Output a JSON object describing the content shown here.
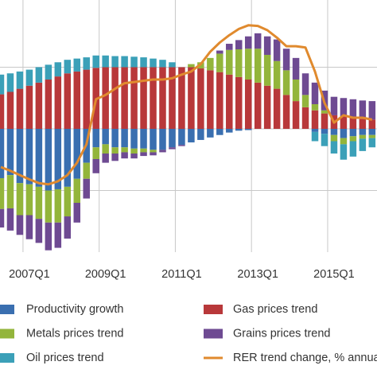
{
  "chart_data": {
    "type": "bar",
    "categories": [
      null,
      null,
      null,
      "2007Q1",
      null,
      null,
      null,
      null,
      null,
      null,
      null,
      "2009Q1",
      null,
      null,
      null,
      null,
      null,
      null,
      null,
      "2011Q1",
      null,
      null,
      null,
      null,
      null,
      null,
      null,
      "2013Q1",
      null,
      null,
      null,
      null,
      null,
      null,
      null,
      "2015Q1",
      null,
      null,
      null,
      null
    ],
    "series": [
      {
        "name": "Productivity growth",
        "color": "#3a6fb0",
        "values": [
          -8,
          -7.5,
          -8.8,
          -9,
          -9.4,
          -10,
          -9.8,
          -9.4,
          -8.1,
          -5.5,
          -3,
          -2.5,
          -3,
          -3,
          -3.2,
          -3.2,
          -3.4,
          -3.4,
          -3,
          -2.6,
          -2.2,
          -1.8,
          -1.4,
          -1,
          -0.6,
          -0.3,
          -0.2,
          0,
          0,
          0,
          0,
          0,
          0,
          -0.5,
          -0.8,
          -1,
          -1.5,
          -1.2,
          -1,
          -1
        ]
      },
      {
        "name": "Gas prices trend",
        "color": "#b8383a",
        "values": [
          5.6,
          6,
          6.5,
          7,
          7.5,
          8,
          8.5,
          9,
          9.3,
          9.6,
          9.9,
          10,
          10,
          10,
          10,
          10,
          10,
          10,
          10,
          10,
          10,
          9.8,
          9.5,
          9.2,
          8.8,
          8.4,
          8,
          7.5,
          7,
          6.5,
          5.5,
          4.5,
          3.5,
          3,
          2.5,
          2.2,
          2,
          1.8,
          1.6,
          1.5
        ]
      },
      {
        "name": "Metals prices trend",
        "color": "#93b53b",
        "values": [
          -5,
          -5.4,
          -5.2,
          -5,
          -5.2,
          -5.2,
          -5.4,
          -4.8,
          -3.9,
          -2.6,
          -1.9,
          -1.5,
          -1,
          -0.8,
          -0.8,
          -0.6,
          -0.4,
          0,
          0,
          0,
          0.5,
          1,
          2,
          3,
          4,
          4.5,
          5,
          5.5,
          5,
          4.5,
          4,
          3.5,
          2,
          1,
          0.5,
          -1,
          -1,
          -0.8,
          -0.6,
          -0.5
        ]
      },
      {
        "name": "Grains prices trend",
        "color": "#6e4a92",
        "values": [
          -3,
          -3.6,
          -3.2,
          -3.9,
          -3.9,
          -4.5,
          -4.1,
          -3.6,
          -3.2,
          -3.2,
          -2.3,
          -1.5,
          -1.2,
          -1,
          -0.8,
          -0.6,
          -0.5,
          -0.4,
          -0.3,
          -0.2,
          0,
          0,
          0,
          0.5,
          1,
          1.5,
          2,
          2.5,
          3,
          3.5,
          3.5,
          3.5,
          3.5,
          3.5,
          3.2,
          3,
          3,
          3,
          3,
          3
        ]
      },
      {
        "name": "Oil prices trend",
        "color": "#3ba0b8",
        "values": [
          3.2,
          3,
          2.8,
          2.6,
          2.5,
          2.4,
          2.3,
          2.2,
          2.1,
          2,
          2,
          1.9,
          1.8,
          1.8,
          1.7,
          1.6,
          1.4,
          1.2,
          0.8,
          0,
          0,
          0,
          0,
          0,
          0,
          0,
          0,
          0,
          0,
          0,
          0,
          0,
          0,
          -1.5,
          -2,
          -2,
          -2.5,
          -2.5,
          -2,
          -1.5
        ]
      },
      {
        "name": "RER trend change, % annual",
        "type": "line",
        "color": "#e08a2e",
        "values": [
          -6.2,
          -6.8,
          -7.5,
          -8.2,
          -8.8,
          -9,
          -8.5,
          -7.5,
          -5.5,
          -2.5,
          4.8,
          5.5,
          6.5,
          7.4,
          7.6,
          7.8,
          8,
          8,
          8.2,
          8.8,
          9.3,
          10.5,
          12.5,
          14,
          15.2,
          16.2,
          16.8,
          16.7,
          16,
          14.8,
          13.4,
          13.4,
          13.2,
          9.3,
          4.2,
          1,
          2.2,
          1.8,
          1.8,
          1.5
        ]
      }
    ],
    "ylim": [
      -20,
      20.9
    ],
    "yticks": [
      -10,
      0,
      10
    ],
    "grid": true
  }
}
